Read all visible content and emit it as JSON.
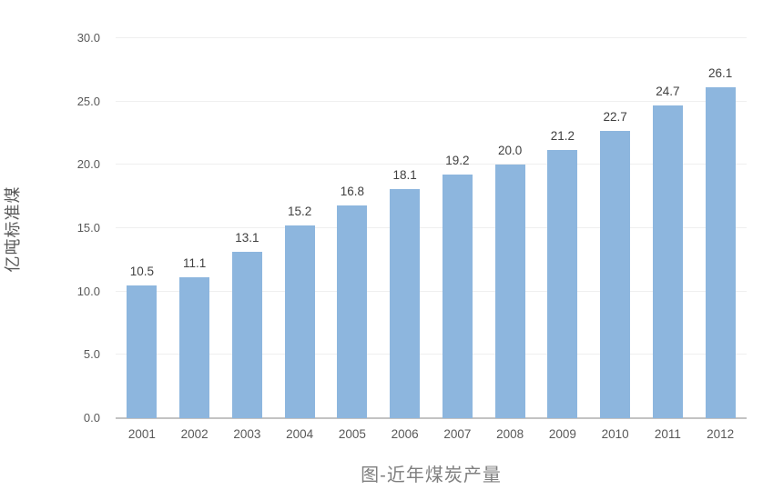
{
  "chart_data": {
    "type": "bar",
    "title": "图-近年煤炭产量",
    "ylabel": "亿吨标准煤",
    "xlabel": "",
    "categories": [
      "2001",
      "2002",
      "2003",
      "2004",
      "2005",
      "2006",
      "2007",
      "2008",
      "2009",
      "2010",
      "2011",
      "2012"
    ],
    "values": [
      10.5,
      11.1,
      13.1,
      15.2,
      16.8,
      18.1,
      19.2,
      20.0,
      21.2,
      22.7,
      24.7,
      26.1
    ],
    "value_labels": [
      "10.5",
      "11.1",
      "13.1",
      "15.2",
      "16.8",
      "18.1",
      "19.2",
      "20.0",
      "21.2",
      "22.7",
      "24.7",
      "26.1"
    ],
    "ylim": [
      0,
      30
    ],
    "ytick_step": 5,
    "ytick_labels": [
      "0.0",
      "5.0",
      "10.0",
      "15.0",
      "20.0",
      "25.0",
      "30.0"
    ],
    "grid": true,
    "legend_position": "none",
    "bar_color": "#8db6de",
    "gridline_color": "#efefef",
    "axis_line_color": "#c3c3c3",
    "tick_label_color": "#595959",
    "data_label_color": "#404040",
    "title_color": "#7f7f7f"
  }
}
